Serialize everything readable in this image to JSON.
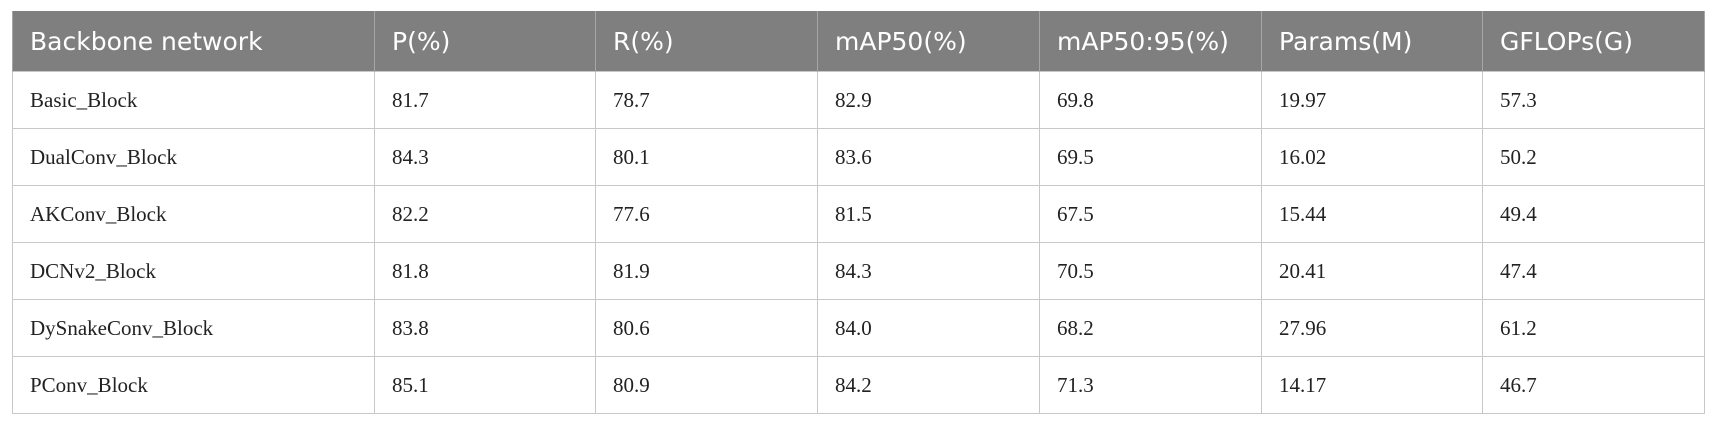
{
  "table": {
    "columns": [
      "Backbone network",
      "P(%)",
      "R(%)",
      "mAP50(%)",
      "mAP50:95(%)",
      "Params(M)",
      "GFLOPs(G)"
    ],
    "rows": [
      [
        "Basic_Block",
        "81.7",
        "78.7",
        "82.9",
        "69.8",
        "19.97",
        "57.3"
      ],
      [
        "DualConv_Block",
        "84.3",
        "80.1",
        "83.6",
        "69.5",
        "16.02",
        "50.2"
      ],
      [
        "AKConv_Block",
        "82.2",
        "77.6",
        "81.5",
        "67.5",
        "15.44",
        "49.4"
      ],
      [
        "DCNv2_Block",
        "81.8",
        "81.9",
        "84.3",
        "70.5",
        "20.41",
        "47.4"
      ],
      [
        "DySnakeConv_Block",
        "83.8",
        "80.6",
        "84.0",
        "68.2",
        "27.96",
        "61.2"
      ],
      [
        "PConv_Block",
        "85.1",
        "80.9",
        "84.2",
        "71.3",
        "14.17",
        "46.7"
      ]
    ]
  }
}
